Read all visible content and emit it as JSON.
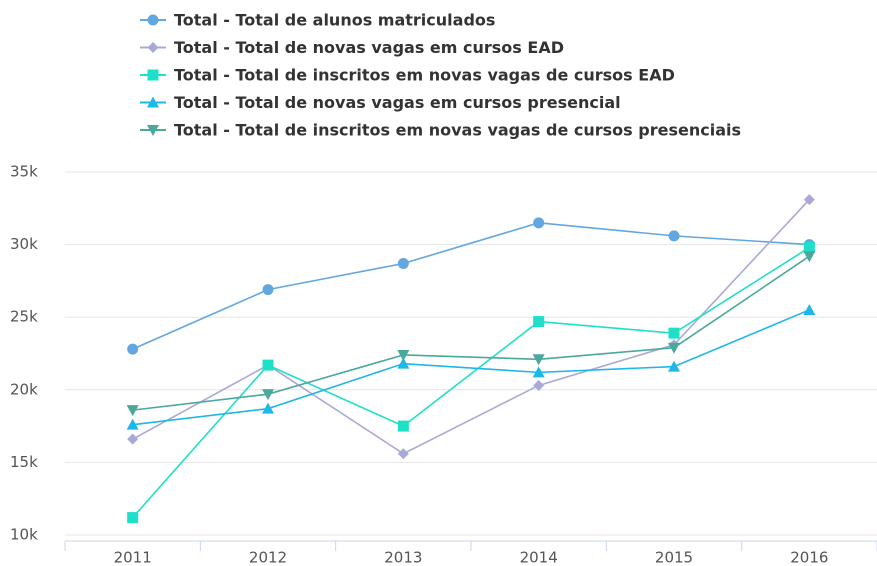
{
  "chart_data": {
    "type": "line",
    "categories": [
      "2011",
      "2012",
      "2013",
      "2014",
      "2015",
      "2016"
    ],
    "series": [
      {
        "name": "Total - Total de alunos matriculados",
        "color": "#62a7e0",
        "marker": "circle",
        "values": [
          22800,
          26900,
          28700,
          31500,
          30600,
          30000
        ]
      },
      {
        "name": "Total - Total de novas vagas em cursos EAD",
        "color": "#a9a9d8",
        "marker": "diamond",
        "values": [
          16600,
          21700,
          15600,
          20300,
          23100,
          33100
        ]
      },
      {
        "name": "Total - Total de inscritos em novas vagas de cursos EAD",
        "color": "#1ee0c8",
        "marker": "square",
        "values": [
          11200,
          21700,
          17500,
          24700,
          23900,
          29800
        ]
      },
      {
        "name": "Total - Total de novas vagas em cursos presencial",
        "color": "#1eb8e8",
        "marker": "triangle",
        "values": [
          17600,
          18700,
          21800,
          21200,
          21600,
          25500
        ]
      },
      {
        "name": "Total - Total de inscritos em novas vagas de cursos presenciais",
        "color": "#4aa89c",
        "marker": "triangle-down",
        "values": [
          18600,
          19700,
          22400,
          22100,
          22900,
          29200
        ]
      }
    ],
    "ylim": [
      10000,
      35000
    ],
    "yticks": [
      {
        "value": 10000,
        "label": "10k"
      },
      {
        "value": 15000,
        "label": "15k"
      },
      {
        "value": 20000,
        "label": "20k"
      },
      {
        "value": 25000,
        "label": "25k"
      },
      {
        "value": 30000,
        "label": "30k"
      },
      {
        "value": 35000,
        "label": "35k"
      }
    ],
    "grid": true,
    "legend": "top"
  }
}
